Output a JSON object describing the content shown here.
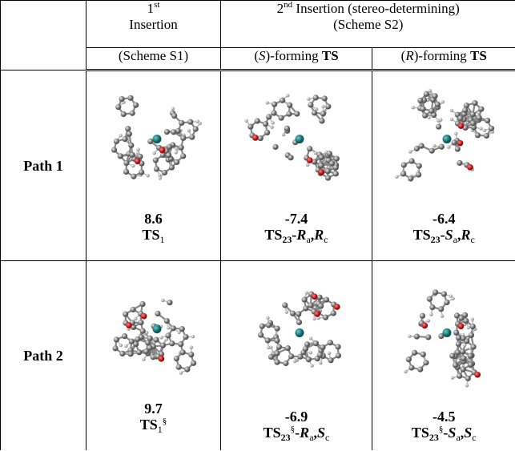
{
  "header": {
    "col1": [
      "1",
      "st",
      "Insertion",
      "(Scheme S1)"
    ],
    "col2": [
      "2",
      "nd",
      " Insertion (stereo-determining)",
      "(Scheme S2)"
    ],
    "sub1": [
      "(",
      "S",
      ")-forming ",
      "TS"
    ],
    "sub2": [
      "(",
      "R",
      ")-forming ",
      "TS"
    ]
  },
  "rows": [
    {
      "label": "Path 1",
      "cells": [
        {
          "energy": 8.6,
          "ts": [
            "TS",
            "1"
          ]
        },
        {
          "energy": -7.4,
          "ts": [
            "TS",
            "23",
            "-",
            "R",
            "a",
            ",",
            "R",
            "c"
          ]
        },
        {
          "energy": -6.4,
          "ts": [
            "TS",
            "23",
            "-",
            "S",
            "a",
            ",",
            "R",
            "c"
          ]
        }
      ]
    },
    {
      "label": "Path 2",
      "cells": [
        {
          "energy": 9.7,
          "ts": [
            "TS",
            "1",
            "§"
          ]
        },
        {
          "energy": -6.9,
          "ts": [
            "TS",
            "23",
            "§",
            "-",
            "R",
            "a",
            ",",
            "S",
            "c"
          ]
        },
        {
          "energy": -4.5,
          "ts": [
            "TS",
            "23",
            "§",
            "-",
            "S",
            "a",
            ",",
            "S",
            "c"
          ]
        }
      ]
    }
  ]
}
